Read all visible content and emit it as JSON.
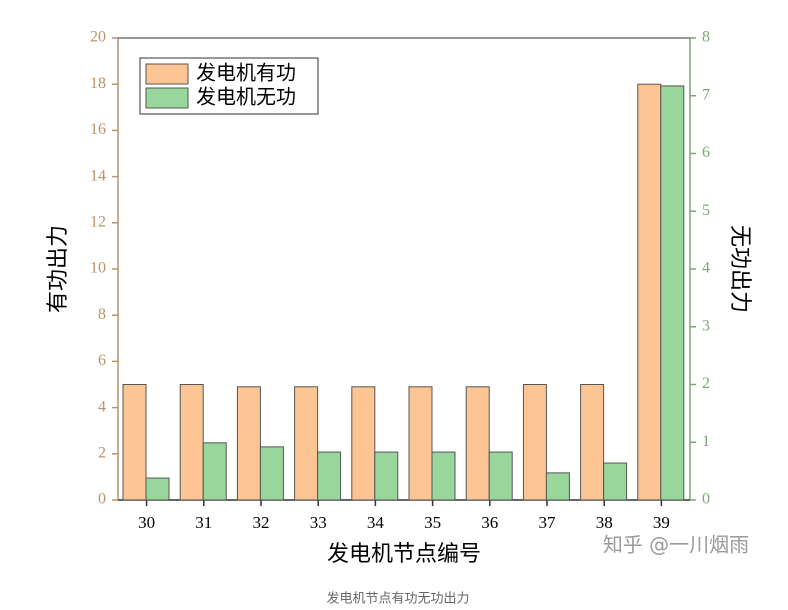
{
  "chart_data": {
    "type": "bar",
    "categories": [
      "30",
      "31",
      "32",
      "33",
      "34",
      "35",
      "36",
      "37",
      "38",
      "39"
    ],
    "series": [
      {
        "name": "发电机有功",
        "color": "#fcc593",
        "values": [
          5,
          5,
          4.9,
          4.9,
          4.9,
          4.9,
          4.9,
          5,
          5,
          18
        ]
      },
      {
        "name": "发电机无功",
        "color": "#98d69b",
        "axis": "y2",
        "values": [
          0.38,
          0.99,
          0.92,
          0.83,
          0.83,
          0.83,
          0.83,
          0.47,
          0.64,
          7.17
        ]
      }
    ],
    "ylim": [
      0,
      20
    ],
    "yticks": [
      0,
      2,
      4,
      6,
      8,
      10,
      12,
      14,
      16,
      18,
      20
    ],
    "y2lim": [
      0,
      8
    ],
    "y2ticks": [
      0,
      1,
      2,
      3,
      4,
      5,
      6,
      7,
      8
    ],
    "ylabel": "有功出力",
    "y2label": "无功出力",
    "xlabel": "发电机节点编号",
    "legend": "upper-left",
    "watermark": "知乎 @一川烟雨",
    "caption": "发电机节点有功无功出力"
  }
}
